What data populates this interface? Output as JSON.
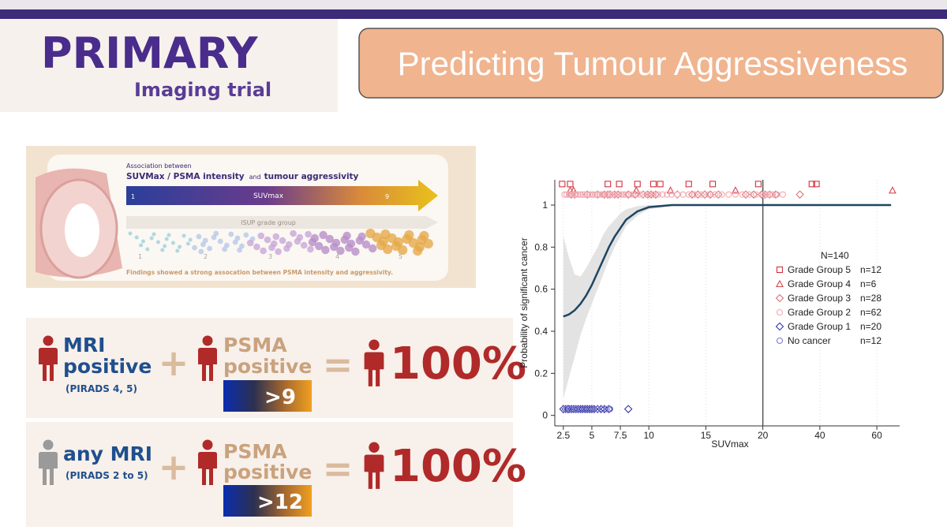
{
  "header": {
    "title": "PRIMARY",
    "subtitle": "Imaging trial",
    "slide_title": "Predicting Tumour Aggressiveness"
  },
  "infographic": {
    "caption_lead": "Association between",
    "caption_metric": "SUVMax / PSMA intensity",
    "caption_and": "and",
    "caption_target": "tumour aggressivity",
    "scale_label": "SUVmax",
    "scale_min": "1",
    "scale_max": "9",
    "grade_label": "ISUP grade group",
    "grades": [
      "1",
      "2",
      "3",
      "4",
      "5"
    ],
    "finding": "Findings showed a strong assocation between PSMA intensity and aggressivity."
  },
  "rules": [
    {
      "mri_icon_color": "#b02a2a",
      "mri_line1": "MRI",
      "mri_line2": "positive",
      "mri_note": "(PIRADS 4, 5)",
      "plus": "+",
      "psma_line1": "PSMA",
      "psma_line2": "positive",
      "threshold": ">9",
      "equals": "=",
      "result": "100%"
    },
    {
      "mri_icon_color": "#9a9a9a",
      "mri_line1": "any MRI",
      "mri_note": "(PIRADS 2 to 5)",
      "plus": "+",
      "psma_line1": "PSMA",
      "psma_line2": "positive",
      "threshold": ">12",
      "equals": "=",
      "result": "100%"
    }
  ],
  "chart_data": {
    "type": "scatter",
    "x_label": "SUVmax",
    "y_label": "Probability of significant cancer",
    "xlim": [
      1.75,
      68
    ],
    "ylim": [
      -0.05,
      1.12
    ],
    "xticks": [
      2.5,
      5,
      7.5,
      10,
      15,
      20,
      40,
      60
    ],
    "yticks": [
      0,
      0.2,
      0.4,
      0.6,
      0.8,
      1
    ],
    "xgrid": true,
    "vline": 20,
    "legend": "right",
    "legend_title": "N=140",
    "series": [
      {
        "name": "Grade Group 5",
        "note": "n=12",
        "color": "#d0313d",
        "marker": "square",
        "x": [
          2.4,
          3.1,
          6.4,
          7.4,
          9.0,
          10.4,
          11.0,
          13.5,
          15.6,
          19.6,
          37.2,
          38.8
        ],
        "values": [
          1.1,
          1.1,
          1.1,
          1.1,
          1.1,
          1.1,
          1.1,
          1.1,
          1.1,
          1.1,
          1.1,
          1.1
        ]
      },
      {
        "name": "Grade Group 4",
        "note": "n=6",
        "color": "#d6474f",
        "marker": "triangle",
        "x": [
          3.1,
          3.4,
          8.9,
          11.9,
          17.6,
          65.5
        ],
        "values": [
          1.07,
          1.07,
          1.07,
          1.07,
          1.07,
          1.07
        ]
      },
      {
        "name": "Grade Group 3",
        "note": "n=28",
        "color": "#d9777b",
        "marker": "diamond",
        "x": [
          3.2,
          3.5,
          4.6,
          5.5,
          6.1,
          6.4,
          6.6,
          7.0,
          7.3,
          8.2,
          8.8,
          9.5,
          9.9,
          10.2,
          10.6,
          12.5,
          13.8,
          14.3,
          14.9,
          15.4,
          16.1,
          18.5,
          19.2,
          19.9,
          20.8,
          22.4,
          24.5,
          33.0
        ],
        "values": [
          1.05,
          1.05,
          1.05,
          1.05,
          1.05,
          1.05,
          1.05,
          1.05,
          1.05,
          1.05,
          1.05,
          1.05,
          1.05,
          1.05,
          1.05,
          1.05,
          1.05,
          1.05,
          1.05,
          1.05,
          1.05,
          1.05,
          1.05,
          1.05,
          1.05,
          1.05,
          1.05,
          1.05
        ]
      },
      {
        "name": "Grade Group 2",
        "note": "n=62",
        "color": "#f0a9b2",
        "marker": "circle",
        "x": [
          2.6,
          2.8,
          3.0,
          3.1,
          3.3,
          3.5,
          3.6,
          3.8,
          4.0,
          4.2,
          4.4,
          4.6,
          4.8,
          5.0,
          5.1,
          5.3,
          5.5,
          5.7,
          5.9,
          6.0,
          6.2,
          6.4,
          6.6,
          6.8,
          7.0,
          7.2,
          7.4,
          7.6,
          7.8,
          8.0,
          8.3,
          8.6,
          8.9,
          9.2,
          9.5,
          9.8,
          10.1,
          10.4,
          10.8,
          11.2,
          11.6,
          12.0,
          12.5,
          13.0,
          13.5,
          14.0,
          14.6,
          15.2,
          15.8,
          16.4,
          17.0,
          17.6,
          18.2,
          18.8,
          19.4,
          20.0,
          20.8,
          21.6,
          22.4,
          23.5,
          25.0,
          27.0
        ],
        "values": [
          1.05,
          1.05,
          1.05,
          1.05,
          1.05,
          1.05,
          1.05,
          1.05,
          1.05,
          1.05,
          1.05,
          1.05,
          1.05,
          1.05,
          1.05,
          1.05,
          1.05,
          1.05,
          1.05,
          1.05,
          1.05,
          1.05,
          1.05,
          1.05,
          1.05,
          1.05,
          1.05,
          1.05,
          1.05,
          1.05,
          1.05,
          1.05,
          1.05,
          1.05,
          1.05,
          1.05,
          1.05,
          1.05,
          1.05,
          1.05,
          1.05,
          1.05,
          1.05,
          1.05,
          1.05,
          1.05,
          1.05,
          1.05,
          1.05,
          1.05,
          1.05,
          1.05,
          1.05,
          1.05,
          1.05,
          1.05,
          1.05,
          1.05,
          1.05,
          1.05,
          1.05,
          1.05
        ]
      },
      {
        "name": "Grade Group 1",
        "note": "n=20",
        "color": "#3535a5",
        "marker": "diamond",
        "x": [
          2.5,
          2.7,
          2.9,
          3.0,
          3.2,
          3.4,
          3.6,
          3.8,
          4.0,
          4.2,
          4.4,
          4.6,
          4.8,
          5.0,
          5.2,
          5.5,
          5.8,
          6.1,
          6.5,
          8.2
        ],
        "values": [
          0.03,
          0.03,
          0.03,
          0.03,
          0.03,
          0.03,
          0.03,
          0.03,
          0.03,
          0.03,
          0.03,
          0.03,
          0.03,
          0.03,
          0.03,
          0.03,
          0.03,
          0.03,
          0.03,
          0.03
        ]
      },
      {
        "name": "No cancer",
        "note": "n=12",
        "color": "#7b7bd2",
        "marker": "circle",
        "x": [
          2.7,
          3.0,
          3.3,
          3.6,
          3.9,
          4.3,
          4.7,
          5.1,
          5.5,
          5.9,
          6.3,
          6.6
        ],
        "values": [
          0.03,
          0.03,
          0.03,
          0.03,
          0.03,
          0.03,
          0.03,
          0.03,
          0.03,
          0.03,
          0.03,
          0.03
        ]
      }
    ],
    "fit": {
      "color": "#1f4561",
      "band_color": "#d9d9d9",
      "x": [
        2.5,
        3,
        3.5,
        4,
        4.5,
        5,
        5.5,
        6,
        6.5,
        7,
        7.5,
        8,
        9,
        10,
        12,
        20,
        40,
        65
      ],
      "values": [
        0.47,
        0.48,
        0.5,
        0.53,
        0.57,
        0.62,
        0.68,
        0.74,
        0.8,
        0.85,
        0.89,
        0.93,
        0.97,
        0.99,
        1,
        1,
        1,
        1
      ],
      "lower": [
        0.08,
        0.18,
        0.28,
        0.38,
        0.46,
        0.53,
        0.6,
        0.67,
        0.74,
        0.8,
        0.85,
        0.9,
        0.95,
        0.98,
        0.995,
        null,
        null,
        null
      ],
      "upper": [
        0.85,
        0.75,
        0.67,
        0.66,
        0.7,
        0.75,
        0.8,
        0.86,
        0.9,
        0.93,
        0.96,
        0.98,
        0.995,
        1,
        1,
        null,
        null,
        null
      ]
    }
  }
}
